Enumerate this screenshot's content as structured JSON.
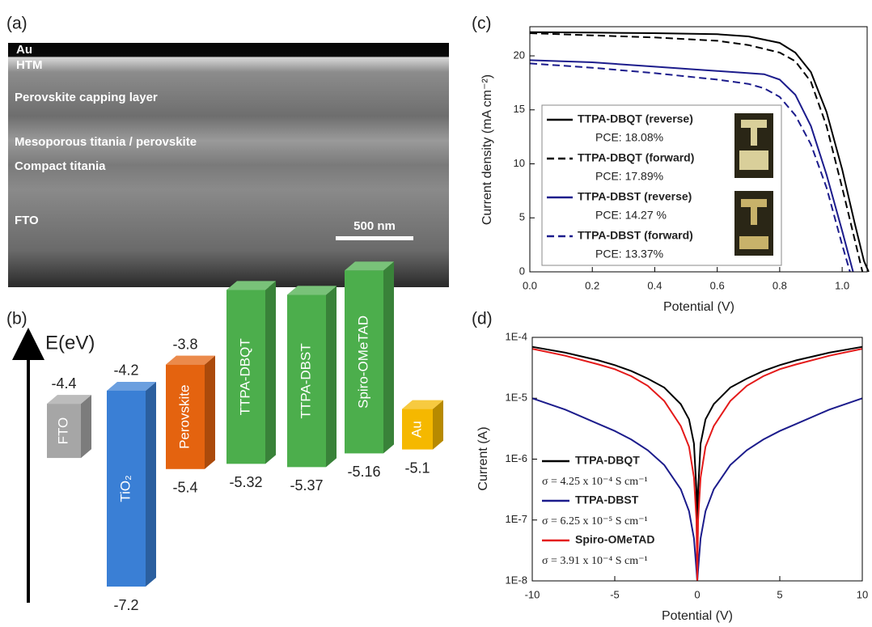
{
  "micrograph": {
    "panel_label": "(a)",
    "layers": [
      "Au",
      "HTM",
      "Perovskite capping layer",
      "Mesoporous titania / perovskite",
      "Compact titania",
      "FTO"
    ],
    "scale_bar": "500 nm"
  },
  "chart_data": [
    {
      "type": "energy_levels",
      "panel_label": "(b)",
      "axis_label": "E(eV)",
      "categories": [
        "FTO",
        "TiO₂",
        "Perovskite",
        "TTPA-DBQT",
        "TTPA-DBST",
        "Spiro-OMeTAD",
        "Au"
      ],
      "upper": [
        -4.4,
        -4.2,
        -3.8,
        null,
        null,
        null,
        null
      ],
      "lower": [
        null,
        -7.2,
        -5.4,
        -5.32,
        -5.37,
        -5.16,
        -5.1
      ],
      "colors": [
        "#a6a6a6",
        "#3a7fd5",
        "#e4630f",
        "#4cae4c",
        "#4cae4c",
        "#4cae4c",
        "#f5b800"
      ]
    },
    {
      "type": "line",
      "panel_label": "(c)",
      "x_label": "Potential (V)",
      "y_label": "Current density (mA cm⁻²)",
      "xlim": [
        0,
        1.08
      ],
      "xticks": [
        {
          "value": 0,
          "label": "0.0"
        },
        0.2,
        0.4,
        0.6,
        0.8,
        {
          "value": 1,
          "label": "1.0"
        }
      ],
      "ylim": [
        0,
        22.7
      ],
      "yticks": [
        0,
        5,
        10,
        15,
        20
      ],
      "series": [
        {
          "name": "TTPA-DBQT (reverse)",
          "pce_label": "PCE: 18.08%",
          "color": "#000000",
          "dash": false,
          "x": [
            0,
            0.2,
            0.4,
            0.6,
            0.7,
            0.8,
            0.85,
            0.9,
            0.95,
            1.0,
            1.04,
            1.07,
            1.085
          ],
          "values": [
            22.2,
            22.15,
            22.1,
            22.0,
            21.8,
            21.2,
            20.3,
            18.5,
            14.8,
            9.5,
            4.5,
            1.0,
            0
          ]
        },
        {
          "name": "TTPA-DBQT (forward)",
          "pce_label": "PCE: 17.89%",
          "color": "#000000",
          "dash": true,
          "x": [
            0,
            0.2,
            0.4,
            0.6,
            0.7,
            0.8,
            0.85,
            0.9,
            0.95,
            1.0,
            1.04,
            1.065
          ],
          "values": [
            22.1,
            21.9,
            21.7,
            21.4,
            21.0,
            20.3,
            19.5,
            17.6,
            13.5,
            7.8,
            3.0,
            0
          ]
        },
        {
          "name": "TTPA-DBST (reverse)",
          "pce_label": "PCE: 14.27 %",
          "color": "#1c1c8c",
          "dash": false,
          "x": [
            0,
            0.2,
            0.4,
            0.6,
            0.7,
            0.75,
            0.8,
            0.85,
            0.9,
            0.95,
            1.0,
            1.035
          ],
          "values": [
            19.6,
            19.4,
            19.0,
            18.6,
            18.4,
            18.3,
            17.8,
            16.4,
            13.5,
            9.0,
            3.8,
            0
          ]
        },
        {
          "name": "TTPA-DBST (forward)",
          "pce_label": "PCE: 13.37%",
          "color": "#1c1c8c",
          "dash": true,
          "x": [
            0,
            0.2,
            0.4,
            0.6,
            0.7,
            0.75,
            0.8,
            0.85,
            0.9,
            0.95,
            1.0,
            1.025
          ],
          "values": [
            19.3,
            18.9,
            18.4,
            17.8,
            17.4,
            17.0,
            16.2,
            14.5,
            11.8,
            7.8,
            2.5,
            0
          ]
        }
      ]
    },
    {
      "type": "line",
      "panel_label": "(d)",
      "x_label": "Potential (V)",
      "y_label": "Current (A)",
      "log": true,
      "xlim": [
        -10,
        10
      ],
      "xticks": [
        -10,
        -5,
        0,
        5,
        10
      ],
      "ylim": [
        1e-08,
        0.0001
      ],
      "yticks": [
        {
          "value": 1e-08,
          "label": "1E-8"
        },
        {
          "value": 1e-07,
          "label": "1E-7"
        },
        {
          "value": 1e-06,
          "label": "1E-6"
        },
        {
          "value": 1e-05,
          "label": "1E-5"
        },
        {
          "value": 0.0001,
          "label": "1E-4"
        }
      ],
      "x": [
        -10,
        -8,
        -6,
        -5,
        -4,
        -3,
        -2,
        -1,
        -0.5,
        -0.2,
        -0.05,
        0,
        0.05,
        0.2,
        0.5,
        1,
        2,
        3,
        4,
        5,
        6,
        8,
        10
      ],
      "series": [
        {
          "name": "TTPA-DBQT",
          "conductivity_label": "σ = 4.25 x 10⁻⁴ S cm⁻¹",
          "color": "#000000",
          "values": [
            7e-05,
            5.6e-05,
            4.2e-05,
            3.5e-05,
            2.8e-05,
            2.1e-05,
            1.5e-05,
            8e-06,
            4.5e-06,
            1.8e-06,
            3e-07,
            1e-08,
            3e-07,
            1.8e-06,
            4.5e-06,
            8e-06,
            1.5e-05,
            2.1e-05,
            2.8e-05,
            3.5e-05,
            4.2e-05,
            5.6e-05,
            7e-05
          ]
        },
        {
          "name": "TTPA-DBST",
          "conductivity_label": "σ = 6.25 x 10⁻⁵ S cm⁻¹",
          "color": "#1c1c8c",
          "values": [
            1e-05,
            6.5e-06,
            3.8e-06,
            2.9e-06,
            2.1e-06,
            1.4e-06,
            8e-07,
            3.2e-07,
            1.4e-07,
            5e-08,
            1.5e-08,
            1e-08,
            1.5e-08,
            5e-08,
            1.4e-07,
            3.2e-07,
            8e-07,
            1.4e-06,
            2.1e-06,
            2.9e-06,
            3.8e-06,
            6.5e-06,
            1e-05
          ]
        },
        {
          "name": "Spiro-OMeTAD",
          "conductivity_label": "σ = 3.91 x 10⁻⁴ S cm⁻¹",
          "color": "#e41a1a",
          "values": [
            6.5e-05,
            5e-05,
            3.6e-05,
            3e-05,
            2.3e-05,
            1.6e-05,
            9e-06,
            3.5e-06,
            1.6e-06,
            5e-07,
            1e-07,
            1e-08,
            1e-07,
            5e-07,
            1.6e-06,
            3.5e-06,
            9e-06,
            1.6e-05,
            2.3e-05,
            3e-05,
            3.6e-05,
            5e-05,
            6.5e-05
          ]
        }
      ]
    }
  ]
}
